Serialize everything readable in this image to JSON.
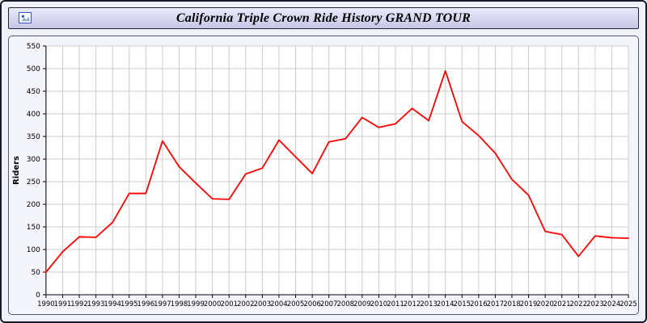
{
  "window": {
    "title": "California Triple Crown Ride History GRAND TOUR",
    "icon": "image-icon"
  },
  "colors": {
    "line": "#ff0000",
    "grid": "#cccccc",
    "axis": "#000000",
    "plot_bg": "#ffffff",
    "panel_bg": "#f4f4fc",
    "header_top": "#eaeafb",
    "header_bottom": "#c6c6e6"
  },
  "chart_data": {
    "type": "line",
    "title": "California Triple Crown Ride History GRAND TOUR",
    "xlabel": "",
    "ylabel": "Riders",
    "ylim": [
      0,
      550
    ],
    "yticks": [
      0,
      50,
      100,
      150,
      200,
      250,
      300,
      350,
      400,
      450,
      500,
      550
    ],
    "grid": true,
    "legend": "none",
    "x": [
      1990,
      1991,
      1992,
      1993,
      1994,
      1995,
      1996,
      1997,
      1998,
      1999,
      2000,
      2001,
      2002,
      2003,
      2004,
      2005,
      2006,
      2007,
      2008,
      2009,
      2010,
      2011,
      2012,
      2013,
      2014,
      2015,
      2016,
      2017,
      2018,
      2019,
      2020,
      2021,
      2022,
      2023,
      2024,
      2025
    ],
    "series": [
      {
        "name": "Riders",
        "color": "#ff0000",
        "values": [
          50,
          95,
          128,
          127,
          160,
          224,
          224,
          340,
          283,
          247,
          212,
          211,
          267,
          280,
          342,
          305,
          268,
          338,
          345,
          392,
          370,
          378,
          412,
          385,
          495,
          383,
          352,
          313,
          255,
          220,
          140,
          133,
          85,
          130,
          126,
          125
        ]
      }
    ]
  }
}
